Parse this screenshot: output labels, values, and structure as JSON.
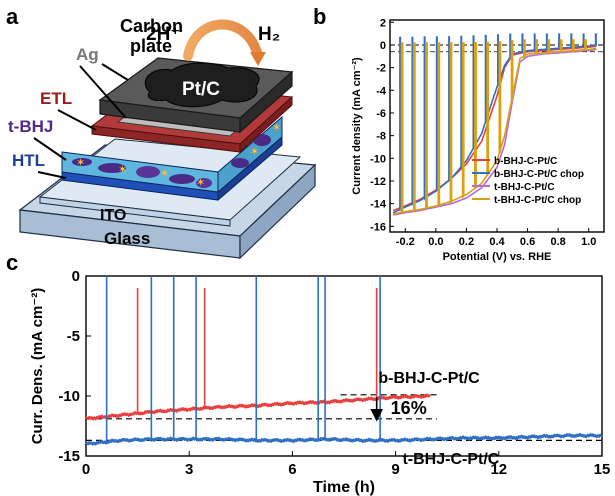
{
  "figure": {
    "panels": {
      "a": {
        "label": "a",
        "layers": {
          "carbon_plate": "Carbon plate",
          "catalyst": "Pt/C",
          "reaction_reactant": "2H⁺",
          "reaction_product": "H₂",
          "ag": "Ag",
          "etl": "ETL",
          "active": "t-BHJ",
          "htl": "HTL",
          "ito": "ITO",
          "substrate": "Glass"
        }
      },
      "b": {
        "label": "b"
      },
      "c": {
        "label": "c"
      }
    }
  },
  "colors": {
    "red": "#e8413d",
    "blue": "#2f6fc4",
    "purple": "#b36ae0",
    "orange": "#d9a010"
  },
  "chart_data": [
    {
      "panel": "b",
      "type": "line",
      "xlabel": "Potential (V) vs. RHE",
      "ylabel": "Current density (mA cm⁻²)",
      "xlim": [
        -0.3,
        1.1
      ],
      "ylim": [
        -16.5,
        2.2
      ],
      "xticks": [
        "-0.2",
        "0.0",
        "0.2",
        "0.4",
        "0.6",
        "0.8",
        "1.0"
      ],
      "yticks": [
        "2",
        "0",
        "-2",
        "-4",
        "-6",
        "-8",
        "-10",
        "-12",
        "-14",
        "-16"
      ],
      "legend_position": "bottom-right",
      "reference_line": {
        "y": 0,
        "style": "dashed"
      },
      "series": [
        {
          "name": "b-BHJ-C-Pt/C",
          "color": "#e8413d",
          "chopped": false,
          "x": [
            -0.28,
            -0.2,
            -0.1,
            0.0,
            0.1,
            0.2,
            0.3,
            0.4,
            0.45,
            0.5,
            0.6,
            0.7,
            0.8,
            0.9,
            1.0,
            1.05
          ],
          "y": [
            -14.6,
            -14.2,
            -13.6,
            -12.8,
            -11.8,
            -10.5,
            -8.5,
            -4.5,
            -2.0,
            -0.9,
            -0.6,
            -0.5,
            -0.4,
            -0.3,
            -0.2,
            -0.1
          ]
        },
        {
          "name": "b-BHJ-C-Pt/C chop",
          "color": "#2f6fc4",
          "chopped": true,
          "x": [
            -0.28,
            -0.2,
            -0.1,
            0.0,
            0.1,
            0.2,
            0.3,
            0.38,
            0.45,
            0.5,
            0.6,
            0.7,
            0.8,
            0.9,
            1.0,
            1.05
          ],
          "y": [
            -14.8,
            -14.3,
            -13.7,
            -12.9,
            -11.8,
            -10.2,
            -7.8,
            -4.5,
            -1.8,
            -0.8,
            -0.5,
            -0.4,
            -0.3,
            -0.2,
            -0.1,
            0.0
          ]
        },
        {
          "name": "t-BHJ-C-Pt/C",
          "color": "#b36ae0",
          "chopped": false,
          "x": [
            -0.28,
            -0.2,
            -0.1,
            0.0,
            0.1,
            0.2,
            0.3,
            0.4,
            0.45,
            0.5,
            0.55,
            0.6,
            0.7,
            0.8,
            0.9,
            1.0,
            1.05
          ],
          "y": [
            -15.0,
            -14.8,
            -14.6,
            -14.3,
            -14.0,
            -13.5,
            -12.6,
            -10.8,
            -8.8,
            -5.0,
            -1.5,
            -1.0,
            -0.8,
            -0.7,
            -0.6,
            -0.5,
            -0.4
          ]
        },
        {
          "name": "t-BHJ-C-Pt/C chop",
          "color": "#d9a010",
          "chopped": true,
          "x": [
            -0.28,
            -0.2,
            -0.1,
            0.0,
            0.1,
            0.2,
            0.3,
            0.4,
            0.45,
            0.5,
            0.55,
            0.6,
            0.7,
            0.8,
            0.9,
            1.0,
            1.05
          ],
          "y": [
            -14.9,
            -14.7,
            -14.5,
            -14.2,
            -13.8,
            -13.2,
            -12.2,
            -10.2,
            -8.0,
            -4.6,
            -1.2,
            -0.8,
            -0.7,
            -0.6,
            -0.5,
            -0.4,
            -0.3
          ]
        }
      ],
      "chop_potentials": [
        -0.24,
        -0.16,
        -0.08,
        0.0,
        0.08,
        0.16,
        0.24,
        0.32,
        0.4,
        0.48,
        0.56,
        0.64,
        0.72,
        0.8,
        0.88,
        0.96,
        1.04
      ]
    },
    {
      "panel": "c",
      "type": "line",
      "xlabel": "Time (h)",
      "ylabel": "Curr. Dens. (mA cm⁻²)",
      "xlim": [
        0,
        15
      ],
      "ylim": [
        -15,
        0
      ],
      "xticks": [
        "0",
        "3",
        "6",
        "9",
        "12",
        "15"
      ],
      "yticks": [
        "0",
        "-5",
        "-10",
        "-15"
      ],
      "series": [
        {
          "name": "b-BHJ-C-Pt/C",
          "color": "#e8413d",
          "x": [
            0,
            1,
            2,
            3,
            4,
            5,
            6,
            7,
            8,
            9,
            10
          ],
          "y": [
            -11.9,
            -11.6,
            -11.3,
            -11.1,
            -10.9,
            -10.8,
            -10.6,
            -10.5,
            -10.3,
            -10.1,
            -10.0
          ],
          "spikes_x": [
            1.5,
            3.45,
            8.45
          ]
        },
        {
          "name": "t-BHJ-C-Pt/C",
          "color": "#2f6fc4",
          "x": [
            0,
            1,
            2,
            3,
            4,
            5,
            6,
            7,
            8,
            9,
            10,
            11,
            12,
            13,
            14,
            15
          ],
          "y": [
            -14.0,
            -13.7,
            -13.6,
            -13.6,
            -13.6,
            -13.7,
            -13.7,
            -13.6,
            -13.7,
            -13.7,
            -13.6,
            -13.5,
            -13.5,
            -13.4,
            -13.3,
            -13.3
          ],
          "spikes_x": [
            0.6,
            1.9,
            2.55,
            3.2,
            4.95,
            6.75,
            6.95,
            8.55
          ]
        }
      ],
      "guide_lines_y": [
        -11.9,
        -13.7,
        -9.9
      ],
      "annotation": "16%",
      "labels": [
        "b-BHJ-C-Pt/C",
        "t-BHJ-C-Pt/C"
      ]
    }
  ]
}
